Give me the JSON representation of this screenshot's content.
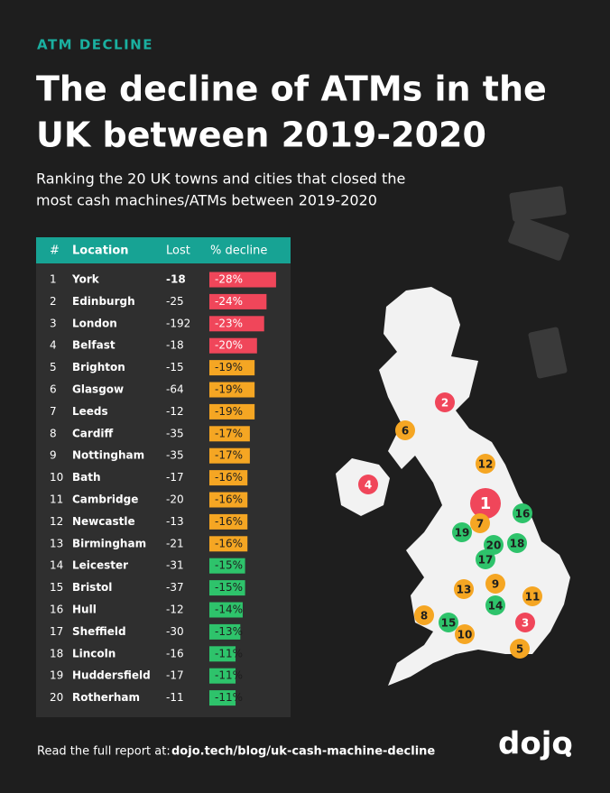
{
  "header": {
    "eyebrow": "ATM DECLINE",
    "title_lines": [
      "The decline of ATMs in the",
      "UK between 2019-2020"
    ],
    "subtitle_lines": [
      "Ranking the 20 UK towns and cities that closed the",
      "most cash machines/ATMs between 2019-2020"
    ]
  },
  "table": {
    "columns": [
      "#",
      "Location",
      "Lost",
      "% decline"
    ],
    "rows": [
      {
        "rank": "1",
        "location": "York",
        "lost": "-18",
        "decline": -28,
        "decline_label": "-28%",
        "color": "#f0465a"
      },
      {
        "rank": "2",
        "location": "Edinburgh",
        "lost": "-25",
        "decline": -24,
        "decline_label": "-24%",
        "color": "#f0465a"
      },
      {
        "rank": "3",
        "location": "London",
        "lost": "-192",
        "decline": -23,
        "decline_label": "-23%",
        "color": "#f0465a"
      },
      {
        "rank": "4",
        "location": "Belfast",
        "lost": "-18",
        "decline": -20,
        "decline_label": "-20%",
        "color": "#f0465a"
      },
      {
        "rank": "5",
        "location": "Brighton",
        "lost": "-15",
        "decline": -19,
        "decline_label": "-19%",
        "color": "#f5a623"
      },
      {
        "rank": "6",
        "location": "Glasgow",
        "lost": "-64",
        "decline": -19,
        "decline_label": "-19%",
        "color": "#f5a623"
      },
      {
        "rank": "7",
        "location": "Leeds",
        "lost": "-12",
        "decline": -19,
        "decline_label": "-19%",
        "color": "#f5a623"
      },
      {
        "rank": "8",
        "location": "Cardiff",
        "lost": "-35",
        "decline": -17,
        "decline_label": "-17%",
        "color": "#f5a623"
      },
      {
        "rank": "9",
        "location": "Nottingham",
        "lost": "-35",
        "decline": -17,
        "decline_label": "-17%",
        "color": "#f5a623"
      },
      {
        "rank": "10",
        "location": "Bath",
        "lost": "-17",
        "decline": -16,
        "decline_label": "-16%",
        "color": "#f5a623"
      },
      {
        "rank": "11",
        "location": "Cambridge",
        "lost": "-20",
        "decline": -16,
        "decline_label": "-16%",
        "color": "#f5a623"
      },
      {
        "rank": "12",
        "location": "Newcastle",
        "lost": "-13",
        "decline": -16,
        "decline_label": "-16%",
        "color": "#f5a623"
      },
      {
        "rank": "13",
        "location": "Birmingham",
        "lost": "-21",
        "decline": -16,
        "decline_label": "-16%",
        "color": "#f5a623"
      },
      {
        "rank": "14",
        "location": "Leicester",
        "lost": "-31",
        "decline": -15,
        "decline_label": "-15%",
        "color": "#2ec36b"
      },
      {
        "rank": "15",
        "location": "Bristol",
        "lost": "-37",
        "decline": -15,
        "decline_label": "-15%",
        "color": "#2ec36b"
      },
      {
        "rank": "16",
        "location": "Hull",
        "lost": "-12",
        "decline": -14,
        "decline_label": "-14%",
        "color": "#2ec36b"
      },
      {
        "rank": "17",
        "location": "Sheffield",
        "lost": "-30",
        "decline": -13,
        "decline_label": "-13%",
        "color": "#2ec36b"
      },
      {
        "rank": "18",
        "location": "Lincoln",
        "lost": "-16",
        "decline": -11,
        "decline_label": "-11%",
        "color": "#2ec36b"
      },
      {
        "rank": "19",
        "location": "Huddersfield",
        "lost": "-17",
        "decline": -11,
        "decline_label": "-11%",
        "color": "#2ec36b"
      },
      {
        "rank": "20",
        "location": "Rotherham",
        "lost": "-11",
        "decline": -11,
        "decline_label": "-11%",
        "color": "#2ec36b"
      }
    ]
  },
  "footer": {
    "lead": "Read the full report at:",
    "link": "dojo.tech/blog/uk-cash-machine-decline",
    "logo": "dojo"
  }
}
